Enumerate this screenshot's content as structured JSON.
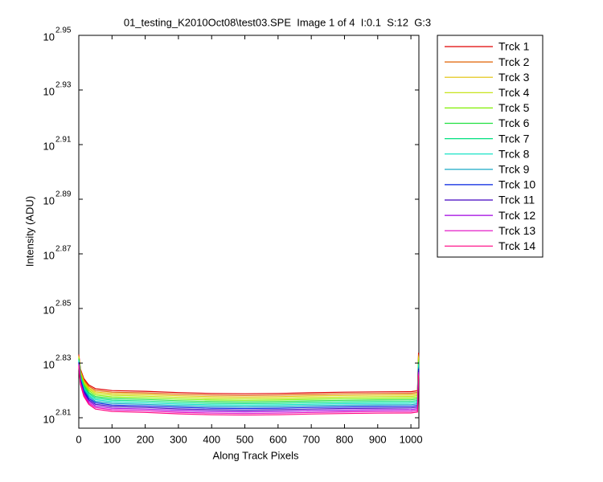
{
  "chart_data": {
    "type": "line",
    "title": "01_testing_K2010Oct08\\test03.SPE  Image 1 of 4  I:0.1  S:12  G:3",
    "xlabel": "Along Track Pixels",
    "ylabel": "Intensity (ADU)",
    "ylog": true,
    "legend": "outside-right",
    "xlim": [
      0,
      1024
    ],
    "xticks": [
      0,
      100,
      200,
      300,
      400,
      500,
      600,
      700,
      800,
      900,
      1000
    ],
    "ylim": [
      640.0,
      891.251
    ],
    "yticks": [
      {
        "value": 645.654,
        "label": "10",
        "exponent": "2.81"
      },
      {
        "value": 676.083,
        "label": "10",
        "exponent": "2.83"
      },
      {
        "value": 707.946,
        "label": "10",
        "exponent": "2.85"
      },
      {
        "value": 741.31,
        "label": "10",
        "exponent": "2.87"
      },
      {
        "value": 776.247,
        "label": "10",
        "exponent": "2.89"
      },
      {
        "value": 812.831,
        "label": "10",
        "exponent": "2.91"
      },
      {
        "value": 851.138,
        "label": "10",
        "exponent": "2.93"
      },
      {
        "value": 891.251,
        "label": "10",
        "exponent": "2.95"
      }
    ],
    "x": [
      0,
      5,
      15,
      30,
      50,
      100,
      200,
      300,
      400,
      500,
      600,
      700,
      800,
      900,
      1000,
      1020,
      1023
    ],
    "series": [
      {
        "name": "Trck 1",
        "color": "#e00000",
        "values": [
          681,
          672.6,
          667.4,
          663.8,
          661.7,
          660.6,
          660.2,
          659.5,
          659,
          658.8,
          659,
          659.4,
          659.7,
          659.9,
          660,
          660.5,
          682
        ]
      },
      {
        "name": "Trck 2",
        "color": "#e06000",
        "values": [
          680.5,
          671.9,
          666.6,
          663.0,
          660.8,
          659.7,
          659.3,
          658.6,
          658.1,
          657.9,
          658.1,
          658.5,
          658.8,
          659.0,
          659.1,
          659.6,
          681
        ]
      },
      {
        "name": "Trck 3",
        "color": "#e0c000",
        "values": [
          680,
          671.3,
          665.8,
          662.1,
          659.9,
          658.9,
          658.4,
          657.7,
          657.2,
          657.0,
          657.2,
          657.6,
          657.9,
          658.1,
          658.2,
          658.7,
          680
        ]
      },
      {
        "name": "Trck 4",
        "color": "#c0e000",
        "values": [
          679.5,
          670.6,
          665.1,
          661.3,
          659.1,
          658.0,
          657.5,
          656.8,
          656.3,
          656.1,
          656.3,
          656.7,
          657.0,
          657.2,
          657.3,
          657.8,
          679
        ]
      },
      {
        "name": "Trck 5",
        "color": "#80f000",
        "values": [
          679,
          670.0,
          664.3,
          660.5,
          658.2,
          657.1,
          656.6,
          655.9,
          655.4,
          655.2,
          655.4,
          655.8,
          656.1,
          656.3,
          656.4,
          656.9,
          678
        ]
      },
      {
        "name": "Trck 6",
        "color": "#20e040",
        "values": [
          678.5,
          669.3,
          663.6,
          659.6,
          657.3,
          656.2,
          655.7,
          655.0,
          654.5,
          654.3,
          654.5,
          654.9,
          655.2,
          655.4,
          655.5,
          656.0,
          677
        ]
      },
      {
        "name": "Trck 7",
        "color": "#00e080",
        "values": [
          678,
          668.6,
          662.8,
          658.8,
          656.5,
          655.3,
          654.8,
          654.1,
          653.6,
          653.4,
          653.6,
          654.0,
          654.3,
          654.5,
          654.6,
          655.1,
          676
        ]
      },
      {
        "name": "Trck 8",
        "color": "#00e0c0",
        "values": [
          677.5,
          668.0,
          662.0,
          658.0,
          655.6,
          654.4,
          653.9,
          653.2,
          652.7,
          652.5,
          652.7,
          653.1,
          653.4,
          653.6,
          653.7,
          654.2,
          675
        ]
      },
      {
        "name": "Trck 9",
        "color": "#00a0c0",
        "values": [
          677,
          667.3,
          661.3,
          657.2,
          654.7,
          653.5,
          653.0,
          652.3,
          651.8,
          651.6,
          651.8,
          652.2,
          652.5,
          652.7,
          652.8,
          653.3,
          674
        ]
      },
      {
        "name": "Trck 10",
        "color": "#0020e0",
        "values": [
          676.5,
          666.7,
          660.5,
          656.3,
          653.9,
          652.6,
          652.1,
          651.4,
          650.9,
          650.7,
          650.9,
          651.3,
          651.6,
          651.8,
          651.9,
          652.4,
          673
        ]
      },
      {
        "name": "Trck 11",
        "color": "#4000c0",
        "values": [
          676,
          666,
          659.8,
          655.5,
          653,
          651.8,
          651.3,
          650.5,
          650,
          649.8,
          650,
          650.4,
          650.7,
          650.9,
          651,
          651.5,
          672
        ]
      },
      {
        "name": "Trck 12",
        "color": "#a000e0",
        "values": [
          675.5,
          665.3,
          659.0,
          654.7,
          652.1,
          650.9,
          650.4,
          649.6,
          649.1,
          648.9,
          649.1,
          649.5,
          649.8,
          650.0,
          650.1,
          650.6,
          671
        ]
      },
      {
        "name": "Trck 13",
        "color": "#e000c0",
        "values": [
          675,
          664.7,
          658.2,
          653.8,
          651.3,
          650.0,
          649.5,
          648.7,
          648.2,
          648.0,
          648.2,
          648.6,
          648.9,
          649.1,
          649.2,
          649.7,
          670
        ]
      },
      {
        "name": "Trck 14",
        "color": "#ff0080",
        "values": [
          674.5,
          664.0,
          657.5,
          653.0,
          650.4,
          649.1,
          648.6,
          647.8,
          647.3,
          647.1,
          647.3,
          647.7,
          648.0,
          648.2,
          648.3,
          648.8,
          669
        ]
      }
    ]
  }
}
